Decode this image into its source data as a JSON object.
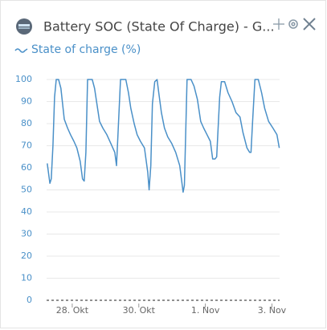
{
  "chart_data": {
    "type": "line",
    "title": "Battery SOC (State Of Charge) - G...",
    "series": [
      {
        "name": "State of charge (%)",
        "color": "#4a90c8",
        "x": [
          -0.75,
          -0.67,
          -0.63,
          -0.58,
          -0.53,
          -0.48,
          -0.41,
          -0.34,
          -0.29,
          -0.24,
          -0.14,
          -0.05,
          0.05,
          0.14,
          0.24,
          0.31,
          0.36,
          0.41,
          0.46,
          0.6,
          0.67,
          0.75,
          0.82,
          0.92,
          1.04,
          1.16,
          1.28,
          1.33,
          1.37,
          1.45,
          1.61,
          1.69,
          1.76,
          1.86,
          1.95,
          2.05,
          2.17,
          2.27,
          2.31,
          2.36,
          2.41,
          2.48,
          2.55,
          2.6,
          2.68,
          2.77,
          2.87,
          2.99,
          3.11,
          3.23,
          3.33,
          3.37,
          3.45,
          3.57,
          3.66,
          3.76,
          3.86,
          3.95,
          4.05,
          4.15,
          4.22,
          4.29,
          4.34,
          4.43,
          4.48,
          4.58,
          4.68,
          4.8,
          4.92,
          5.04,
          5.13,
          5.25,
          5.33,
          5.37,
          5.42,
          5.49,
          5.59,
          5.69,
          5.78,
          5.9,
          6.03,
          6.15,
          6.22
        ],
        "values": [
          62,
          53,
          55,
          70,
          92,
          100,
          100,
          96,
          89,
          82,
          78,
          75,
          72,
          69,
          63,
          55,
          54,
          67,
          100,
          100,
          96,
          88,
          81,
          78,
          75,
          71,
          67,
          61,
          74,
          100,
          100,
          94,
          87,
          80,
          75,
          72,
          69,
          58,
          50,
          61,
          89,
          99,
          100,
          94,
          85,
          78,
          74,
          71,
          67,
          61,
          49,
          52,
          100,
          100,
          97,
          91,
          81,
          78,
          75,
          72,
          64,
          64,
          65,
          92,
          99,
          99,
          94,
          90,
          85,
          83,
          76,
          69,
          67,
          67,
          81,
          100,
          100,
          94,
          87,
          81,
          78,
          75,
          69
        ]
      }
    ],
    "xlim": [
      -0.77,
      6.23
    ],
    "xticks": [
      {
        "value": 0,
        "label": "28. Okt"
      },
      {
        "value": 2,
        "label": "30. Okt"
      },
      {
        "value": 4,
        "label": "1. Nov"
      },
      {
        "value": 6,
        "label": "3. Nov"
      }
    ],
    "ylim": [
      0,
      100
    ],
    "yticks": [
      0,
      10,
      20,
      30,
      40,
      50,
      60,
      70,
      80,
      90,
      100
    ],
    "grid": true
  }
}
